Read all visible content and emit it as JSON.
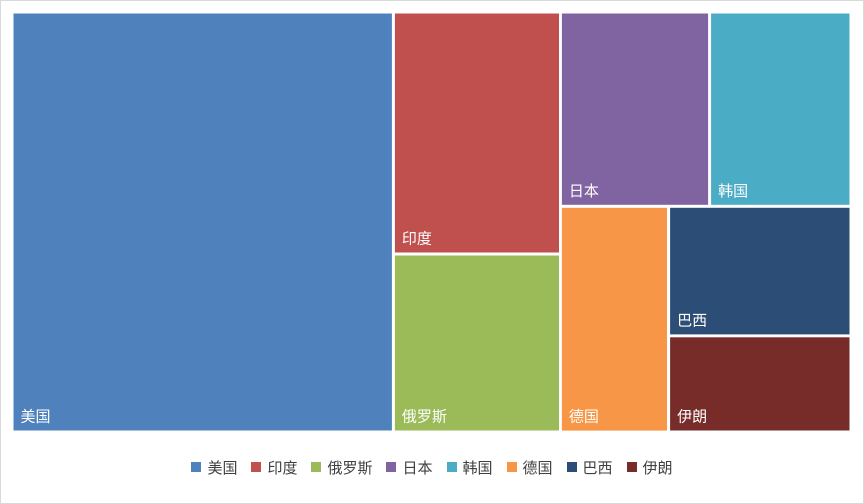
{
  "chart_data": {
    "type": "treemap",
    "title": "",
    "legend_position": "bottom",
    "items": [
      {
        "name": "美国",
        "value": 2.1,
        "color": "#4F81BD"
      },
      {
        "name": "印度",
        "value": 0.53,
        "color": "#C0504D"
      },
      {
        "name": "俄罗斯",
        "value": 0.39,
        "color": "#9BBB59"
      },
      {
        "name": "日本",
        "value": 0.38,
        "color": "#8064A2"
      },
      {
        "name": "韩国",
        "value": 0.36,
        "color": "#4BACC6"
      },
      {
        "name": "德国",
        "value": 0.32,
        "color": "#F79646"
      },
      {
        "name": "巴西",
        "value": 0.31,
        "color": "#2C4D75"
      },
      {
        "name": "伊朗",
        "value": 0.23,
        "color": "#772C2A"
      }
    ]
  }
}
